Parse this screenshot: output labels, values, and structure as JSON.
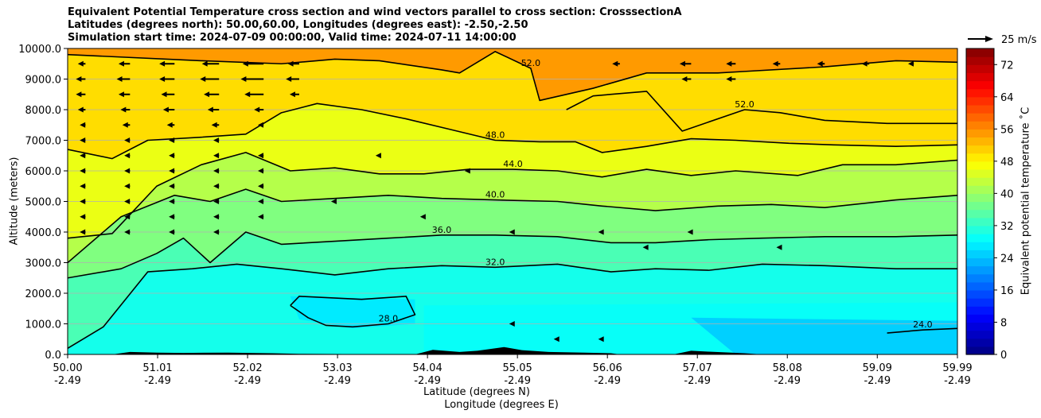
{
  "chart_data": {
    "type": "filled-contour cross section",
    "title_lines": [
      "Equivalent Potential Temperature cross section and wind vectors parallel to cross section: CrosssectionA",
      "Latitudes (degrees north): 50.00,60.00, Longitudes (degrees east): -2.50,-2.50",
      "Simulation start time: 2024-07-09 00:00:00, Valid time: 2024-07-11 14:00:00"
    ],
    "xlabel_line1": "Latitude (degrees N)",
    "xlabel_line2": "Longitude (degrees E)",
    "ylabel": "Altitude (meters)",
    "colorbar_label": "Equivalent potential temperature ˚C",
    "quiver_key": "25 m/s",
    "x_ticks": [
      {
        "lat": "50.00",
        "lon": "-2.49"
      },
      {
        "lat": "51.01",
        "lon": "-2.49"
      },
      {
        "lat": "52.02",
        "lon": "-2.49"
      },
      {
        "lat": "53.03",
        "lon": "-2.49"
      },
      {
        "lat": "54.04",
        "lon": "-2.49"
      },
      {
        "lat": "55.05",
        "lon": "-2.49"
      },
      {
        "lat": "56.06",
        "lon": "-2.49"
      },
      {
        "lat": "57.07",
        "lon": "-2.49"
      },
      {
        "lat": "58.08",
        "lon": "-2.49"
      },
      {
        "lat": "59.09",
        "lon": "-2.49"
      },
      {
        "lat": "59.99",
        "lon": "-2.49"
      }
    ],
    "y_ticks": [
      "0.0",
      "1000.0",
      "2000.0",
      "3000.0",
      "4000.0",
      "5000.0",
      "6000.0",
      "7000.0",
      "8000.0",
      "9000.0",
      "10000.0"
    ],
    "ylim": [
      0,
      10000
    ],
    "xlim": [
      50.0,
      59.99
    ],
    "colorbar_ticks": [
      "0",
      "8",
      "16",
      "24",
      "32",
      "40",
      "48",
      "56",
      "64",
      "72"
    ],
    "colorbar_range": [
      0,
      76
    ],
    "grid": "horizontal",
    "colormap": "jet",
    "contour_levels": [
      {
        "value": 24,
        "label": "24.0"
      },
      {
        "value": 28,
        "label": "28.0"
      },
      {
        "value": 32,
        "label": "32.0"
      },
      {
        "value": 36,
        "label": "36.0"
      },
      {
        "value": 40,
        "label": "40.0"
      },
      {
        "value": 44,
        "label": "44.0"
      },
      {
        "value": 48,
        "label": "48.0"
      },
      {
        "value": 52,
        "label": "52.0"
      }
    ],
    "contours": [
      {
        "value": 52,
        "pts": [
          [
            50.0,
            9800
          ],
          [
            51.5,
            9600
          ],
          [
            52.4,
            9500
          ],
          [
            53.0,
            9650
          ],
          [
            53.5,
            9600
          ],
          [
            54.2,
            9300
          ],
          [
            54.4,
            9200
          ],
          [
            54.8,
            9900
          ],
          [
            55.2,
            9350
          ],
          [
            55.3,
            8300
          ],
          [
            55.9,
            8700
          ],
          [
            56.5,
            9200
          ],
          [
            57.3,
            9200
          ],
          [
            57.6,
            9250
          ],
          [
            58.5,
            9400
          ],
          [
            59.3,
            9600
          ],
          [
            59.99,
            9550
          ]
        ]
      },
      {
        "value": 52,
        "pts": [
          [
            55.6,
            8000
          ],
          [
            55.9,
            8450
          ],
          [
            56.5,
            8600
          ],
          [
            56.9,
            7300
          ],
          [
            57.6,
            8000
          ],
          [
            58.0,
            7900
          ],
          [
            58.5,
            7650
          ],
          [
            59.2,
            7550
          ],
          [
            59.99,
            7550
          ]
        ]
      },
      {
        "value": 48,
        "pts": [
          [
            50.0,
            6700
          ],
          [
            50.5,
            6400
          ],
          [
            50.9,
            7000
          ],
          [
            51.5,
            7100
          ],
          [
            52.0,
            7200
          ],
          [
            52.4,
            7900
          ],
          [
            52.8,
            8200
          ],
          [
            53.3,
            8000
          ],
          [
            53.8,
            7700
          ],
          [
            54.3,
            7350
          ],
          [
            54.8,
            7000
          ],
          [
            55.3,
            6950
          ],
          [
            55.7,
            6950
          ],
          [
            56.0,
            6600
          ],
          [
            56.5,
            6800
          ],
          [
            57.0,
            7050
          ],
          [
            57.5,
            7000
          ],
          [
            58.1,
            6900
          ],
          [
            58.6,
            6850
          ],
          [
            59.3,
            6800
          ],
          [
            59.99,
            6850
          ]
        ]
      },
      {
        "value": 44,
        "pts": [
          [
            50.0,
            3800
          ],
          [
            50.5,
            3950
          ],
          [
            51.0,
            5500
          ],
          [
            51.5,
            6200
          ],
          [
            52.0,
            6600
          ],
          [
            52.5,
            6000
          ],
          [
            53.0,
            6100
          ],
          [
            53.5,
            5900
          ],
          [
            54.0,
            5900
          ],
          [
            54.5,
            6050
          ],
          [
            55.0,
            6050
          ],
          [
            55.5,
            6000
          ],
          [
            56.0,
            5800
          ],
          [
            56.5,
            6050
          ],
          [
            57.0,
            5850
          ],
          [
            57.5,
            6000
          ],
          [
            58.2,
            5850
          ],
          [
            58.7,
            6200
          ],
          [
            59.3,
            6200
          ],
          [
            59.99,
            6350
          ]
        ]
      },
      {
        "value": 40,
        "pts": [
          [
            50.0,
            3000
          ],
          [
            50.6,
            4500
          ],
          [
            51.2,
            5200
          ],
          [
            51.6,
            5000
          ],
          [
            52.0,
            5400
          ],
          [
            52.4,
            5000
          ],
          [
            53.0,
            5100
          ],
          [
            53.6,
            5200
          ],
          [
            54.2,
            5100
          ],
          [
            54.8,
            5050
          ],
          [
            55.5,
            5000
          ],
          [
            56.0,
            4850
          ],
          [
            56.6,
            4700
          ],
          [
            57.3,
            4850
          ],
          [
            57.9,
            4900
          ],
          [
            58.5,
            4800
          ],
          [
            59.3,
            5050
          ],
          [
            59.99,
            5200
          ]
        ]
      },
      {
        "value": 36,
        "pts": [
          [
            50.0,
            2500
          ],
          [
            50.6,
            2800
          ],
          [
            51.0,
            3300
          ],
          [
            51.3,
            3800
          ],
          [
            51.6,
            3000
          ],
          [
            52.0,
            4000
          ],
          [
            52.4,
            3600
          ],
          [
            53.0,
            3700
          ],
          [
            53.6,
            3800
          ],
          [
            54.2,
            3900
          ],
          [
            54.8,
            3900
          ],
          [
            55.5,
            3850
          ],
          [
            56.1,
            3650
          ],
          [
            56.6,
            3650
          ],
          [
            57.2,
            3750
          ],
          [
            57.8,
            3800
          ],
          [
            58.5,
            3850
          ],
          [
            59.3,
            3850
          ],
          [
            59.99,
            3900
          ]
        ]
      },
      {
        "value": 32,
        "pts": [
          [
            50.0,
            200
          ],
          [
            50.4,
            900
          ],
          [
            50.9,
            2700
          ],
          [
            51.4,
            2800
          ],
          [
            51.9,
            2950
          ],
          [
            52.4,
            2800
          ],
          [
            53.0,
            2600
          ],
          [
            53.6,
            2800
          ],
          [
            54.2,
            2900
          ],
          [
            54.8,
            2850
          ],
          [
            55.5,
            2950
          ],
          [
            56.1,
            2700
          ],
          [
            56.6,
            2800
          ],
          [
            57.2,
            2750
          ],
          [
            57.8,
            2950
          ],
          [
            58.5,
            2900
          ],
          [
            59.3,
            2800
          ],
          [
            59.99,
            2800
          ]
        ]
      },
      {
        "value": 28,
        "pts": [
          [
            52.5,
            1600
          ],
          [
            52.6,
            1900
          ],
          [
            53.3,
            1800
          ],
          [
            53.8,
            1900
          ],
          [
            53.9,
            1300
          ],
          [
            53.6,
            1000
          ],
          [
            53.2,
            900
          ],
          [
            52.9,
            950
          ],
          [
            52.7,
            1200
          ],
          [
            52.5,
            1600
          ]
        ]
      },
      {
        "value": 24,
        "pts": [
          [
            59.2,
            700
          ],
          [
            59.6,
            800
          ],
          [
            59.99,
            850
          ]
        ]
      }
    ],
    "wind_vectors": [
      {
        "x": 50.2,
        "y": 9500,
        "u": -4
      },
      {
        "x": 50.7,
        "y": 9500,
        "u": -6
      },
      {
        "x": 51.2,
        "y": 9500,
        "u": -8
      },
      {
        "x": 51.7,
        "y": 9500,
        "u": -9
      },
      {
        "x": 52.2,
        "y": 9500,
        "u": -11
      },
      {
        "x": 52.6,
        "y": 9500,
        "u": -6
      },
      {
        "x": 56.2,
        "y": 9500,
        "u": -4
      },
      {
        "x": 57.0,
        "y": 9500,
        "u": -6
      },
      {
        "x": 57.5,
        "y": 9500,
        "u": -5
      },
      {
        "x": 58.0,
        "y": 9500,
        "u": -4
      },
      {
        "x": 58.5,
        "y": 9500,
        "u": -4
      },
      {
        "x": 59.0,
        "y": 9500,
        "u": -4
      },
      {
        "x": 59.5,
        "y": 9500,
        "u": -3
      },
      {
        "x": 50.2,
        "y": 9000,
        "u": -5
      },
      {
        "x": 50.7,
        "y": 9000,
        "u": -7
      },
      {
        "x": 51.2,
        "y": 9000,
        "u": -8
      },
      {
        "x": 51.7,
        "y": 9000,
        "u": -10
      },
      {
        "x": 52.2,
        "y": 9000,
        "u": -12
      },
      {
        "x": 52.6,
        "y": 9000,
        "u": -7
      },
      {
        "x": 57.0,
        "y": 9000,
        "u": -5
      },
      {
        "x": 57.5,
        "y": 9000,
        "u": -5
      },
      {
        "x": 50.2,
        "y": 8500,
        "u": -5
      },
      {
        "x": 50.7,
        "y": 8500,
        "u": -6
      },
      {
        "x": 51.2,
        "y": 8500,
        "u": -7
      },
      {
        "x": 51.7,
        "y": 8500,
        "u": -8
      },
      {
        "x": 52.2,
        "y": 8500,
        "u": -10
      },
      {
        "x": 52.6,
        "y": 8500,
        "u": -5
      },
      {
        "x": 50.2,
        "y": 8000,
        "u": -4
      },
      {
        "x": 50.7,
        "y": 8000,
        "u": -5
      },
      {
        "x": 51.2,
        "y": 8000,
        "u": -6
      },
      {
        "x": 51.7,
        "y": 8000,
        "u": -6
      },
      {
        "x": 52.2,
        "y": 8000,
        "u": -5
      },
      {
        "x": 50.2,
        "y": 7500,
        "u": -3
      },
      {
        "x": 50.7,
        "y": 7500,
        "u": -4
      },
      {
        "x": 51.2,
        "y": 7500,
        "u": -4
      },
      {
        "x": 51.7,
        "y": 7500,
        "u": -4
      },
      {
        "x": 52.2,
        "y": 7500,
        "u": -3
      },
      {
        "x": 50.2,
        "y": 7000,
        "u": -3
      },
      {
        "x": 50.7,
        "y": 7000,
        "u": -3
      },
      {
        "x": 51.2,
        "y": 7000,
        "u": -3
      },
      {
        "x": 51.7,
        "y": 7000,
        "u": -3
      },
      {
        "x": 50.2,
        "y": 6500,
        "u": -3
      },
      {
        "x": 50.7,
        "y": 6500,
        "u": -3
      },
      {
        "x": 51.2,
        "y": 6500,
        "u": -3
      },
      {
        "x": 51.7,
        "y": 6500,
        "u": -3
      },
      {
        "x": 52.2,
        "y": 6500,
        "u": -3
      },
      {
        "x": 50.2,
        "y": 6000,
        "u": -3
      },
      {
        "x": 50.7,
        "y": 6000,
        "u": -3
      },
      {
        "x": 51.2,
        "y": 6000,
        "u": -3
      },
      {
        "x": 51.7,
        "y": 6000,
        "u": -3
      },
      {
        "x": 52.2,
        "y": 6000,
        "u": -3
      },
      {
        "x": 50.2,
        "y": 5500,
        "u": -3
      },
      {
        "x": 50.7,
        "y": 5500,
        "u": -3
      },
      {
        "x": 51.2,
        "y": 5500,
        "u": -3
      },
      {
        "x": 51.7,
        "y": 5500,
        "u": -3
      },
      {
        "x": 52.2,
        "y": 5500,
        "u": -3
      },
      {
        "x": 50.2,
        "y": 5000,
        "u": -3
      },
      {
        "x": 50.7,
        "y": 5000,
        "u": -3
      },
      {
        "x": 51.2,
        "y": 5000,
        "u": -3
      },
      {
        "x": 51.7,
        "y": 5000,
        "u": -3
      },
      {
        "x": 52.2,
        "y": 5000,
        "u": -3
      },
      {
        "x": 50.2,
        "y": 4500,
        "u": -3
      },
      {
        "x": 50.7,
        "y": 4500,
        "u": -3
      },
      {
        "x": 51.2,
        "y": 4500,
        "u": -3
      },
      {
        "x": 51.7,
        "y": 4500,
        "u": -3
      },
      {
        "x": 52.2,
        "y": 4500,
        "u": -3
      },
      {
        "x": 50.2,
        "y": 4000,
        "u": -3
      },
      {
        "x": 50.7,
        "y": 4000,
        "u": -3
      },
      {
        "x": 51.2,
        "y": 4000,
        "u": -3
      },
      {
        "x": 51.7,
        "y": 4000,
        "u": -3
      },
      {
        "x": 53.5,
        "y": 6500,
        "u": -2
      },
      {
        "x": 54.5,
        "y": 6000,
        "u": -2
      },
      {
        "x": 53.0,
        "y": 5000,
        "u": -2
      },
      {
        "x": 54.0,
        "y": 4500,
        "u": -2
      },
      {
        "x": 55.0,
        "y": 4000,
        "u": -2
      },
      {
        "x": 56.0,
        "y": 4000,
        "u": -2
      },
      {
        "x": 57.0,
        "y": 4000,
        "u": -2
      },
      {
        "x": 56.5,
        "y": 3500,
        "u": -2
      },
      {
        "x": 58.0,
        "y": 3500,
        "u": -2
      },
      {
        "x": 55.0,
        "y": 1000,
        "u": -2
      },
      {
        "x": 56.0,
        "y": 500,
        "u": -2
      },
      {
        "x": 55.5,
        "y": 500,
        "u": -2
      }
    ]
  }
}
